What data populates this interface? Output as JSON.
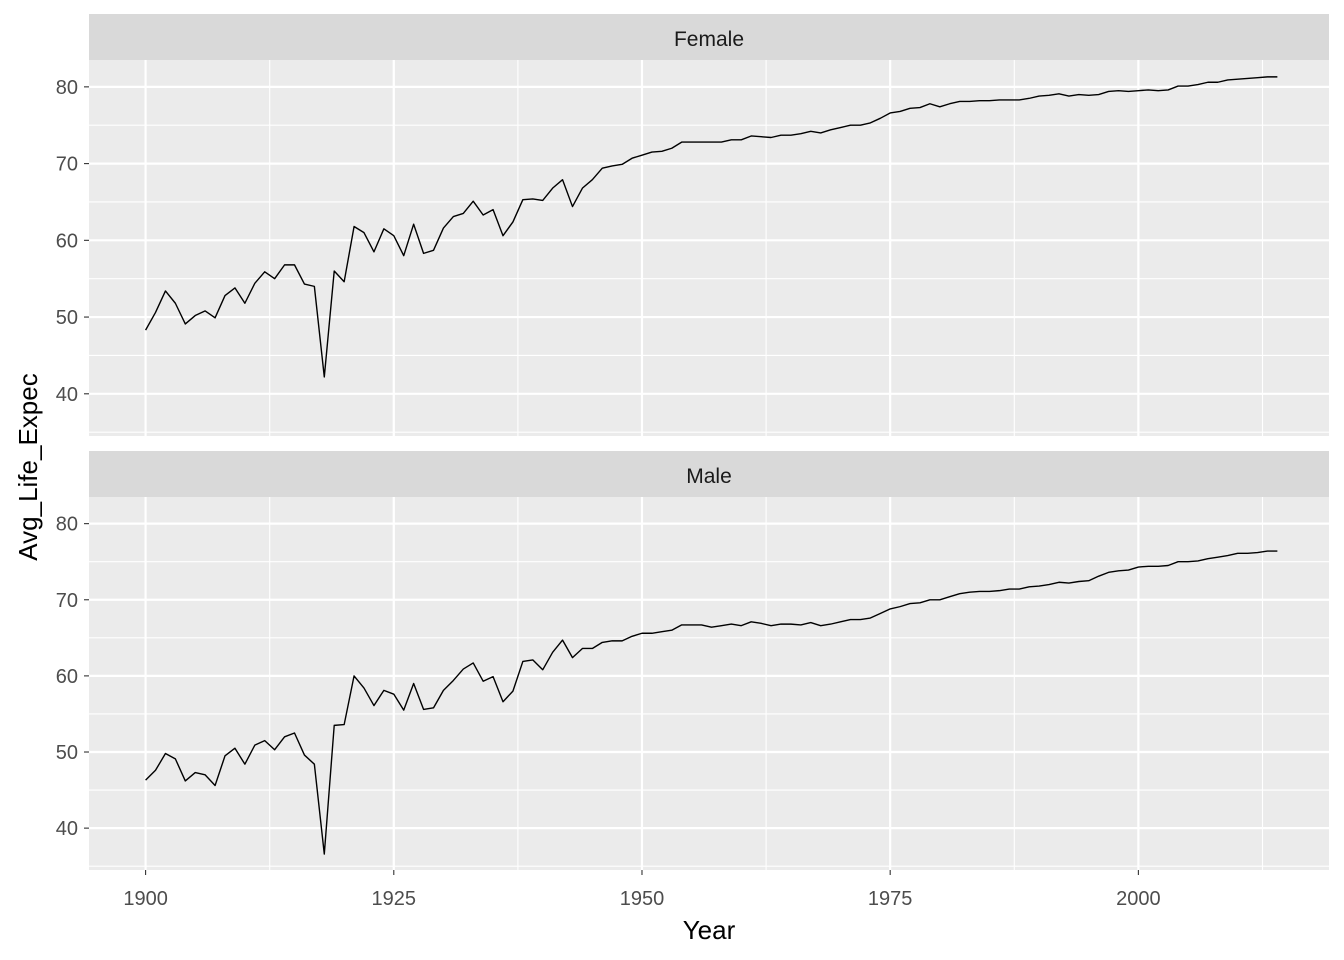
{
  "chart_data": {
    "type": "line",
    "facet_by": "sex",
    "xlabel": "Year",
    "ylabel": "Avg_Life_Expec",
    "xlim": [
      1894.3,
      2019.2
    ],
    "ylim": [
      34.5,
      83.5
    ],
    "x_ticks": [
      1900,
      1925,
      1950,
      1975,
      2000
    ],
    "y_ticks": [
      40,
      50,
      60,
      70,
      80
    ],
    "colors": {
      "panel_bg": "#ebebeb",
      "strip_bg": "#d9d9d9",
      "grid": "#ffffff",
      "line": "#000000"
    },
    "x": [
      1900,
      1901,
      1902,
      1903,
      1904,
      1905,
      1906,
      1907,
      1908,
      1909,
      1910,
      1911,
      1912,
      1913,
      1914,
      1915,
      1916,
      1917,
      1918,
      1919,
      1920,
      1921,
      1922,
      1923,
      1924,
      1925,
      1926,
      1927,
      1928,
      1929,
      1930,
      1931,
      1932,
      1933,
      1934,
      1935,
      1936,
      1937,
      1938,
      1939,
      1940,
      1941,
      1942,
      1943,
      1944,
      1945,
      1946,
      1947,
      1948,
      1949,
      1950,
      1951,
      1952,
      1953,
      1954,
      1955,
      1956,
      1957,
      1958,
      1959,
      1960,
      1961,
      1962,
      1963,
      1964,
      1965,
      1966,
      1967,
      1968,
      1969,
      1970,
      1971,
      1972,
      1973,
      1974,
      1975,
      1976,
      1977,
      1978,
      1979,
      1980,
      1981,
      1982,
      1983,
      1984,
      1985,
      1986,
      1987,
      1988,
      1989,
      1990,
      1991,
      1992,
      1993,
      1994,
      1995,
      1996,
      1997,
      1998,
      1999,
      2000,
      2001,
      2002,
      2003,
      2004,
      2005,
      2006,
      2007,
      2008,
      2009,
      2010,
      2011,
      2012,
      2013,
      2014
    ],
    "series": [
      {
        "name": "Female",
        "values": [
          48.3,
          50.6,
          53.4,
          51.8,
          49.1,
          50.2,
          50.8,
          49.9,
          52.8,
          53.8,
          51.8,
          54.4,
          55.9,
          55.0,
          56.8,
          56.8,
          54.3,
          54.0,
          42.2,
          56.0,
          54.6,
          61.8,
          61.0,
          58.5,
          61.5,
          60.6,
          58.0,
          62.1,
          58.3,
          58.7,
          61.6,
          63.1,
          63.5,
          65.1,
          63.3,
          64.0,
          60.6,
          62.4,
          65.3,
          65.4,
          65.2,
          66.8,
          67.9,
          64.4,
          66.8,
          67.9,
          69.4,
          69.7,
          69.9,
          70.7,
          71.1,
          71.5,
          71.6,
          72.0,
          72.8,
          72.8,
          72.8,
          72.8,
          72.8,
          73.1,
          73.1,
          73.6,
          73.5,
          73.4,
          73.7,
          73.7,
          73.9,
          74.2,
          74.0,
          74.4,
          74.7,
          75.0,
          75.0,
          75.3,
          75.9,
          76.6,
          76.8,
          77.2,
          77.3,
          77.8,
          77.4,
          77.8,
          78.1,
          78.1,
          78.2,
          78.2,
          78.3,
          78.3,
          78.3,
          78.5,
          78.8,
          78.9,
          79.1,
          78.8,
          79.0,
          78.9,
          79.0,
          79.4,
          79.5,
          79.4,
          79.5,
          79.6,
          79.5,
          79.6,
          80.1,
          80.1,
          80.3,
          80.6,
          80.6,
          80.9,
          81.0,
          81.1,
          81.2,
          81.3,
          81.3
        ]
      },
      {
        "name": "Male",
        "values": [
          46.3,
          47.6,
          49.8,
          49.1,
          46.2,
          47.3,
          47.0,
          45.6,
          49.5,
          50.5,
          48.4,
          50.9,
          51.5,
          50.3,
          52.0,
          52.5,
          49.6,
          48.4,
          36.6,
          53.5,
          53.6,
          60.0,
          58.4,
          56.1,
          58.1,
          57.6,
          55.5,
          59.0,
          55.6,
          55.8,
          58.1,
          59.4,
          60.9,
          61.7,
          59.3,
          59.9,
          56.6,
          58.0,
          61.9,
          62.1,
          60.8,
          63.1,
          64.7,
          62.4,
          63.6,
          63.6,
          64.4,
          64.6,
          64.6,
          65.2,
          65.6,
          65.6,
          65.8,
          66.0,
          66.7,
          66.7,
          66.7,
          66.4,
          66.6,
          66.8,
          66.6,
          67.1,
          66.9,
          66.6,
          66.8,
          66.8,
          66.7,
          67.0,
          66.6,
          66.8,
          67.1,
          67.4,
          67.4,
          67.6,
          68.2,
          68.8,
          69.1,
          69.5,
          69.6,
          70.0,
          70.0,
          70.4,
          70.8,
          71.0,
          71.1,
          71.1,
          71.2,
          71.4,
          71.4,
          71.7,
          71.8,
          72.0,
          72.3,
          72.2,
          72.4,
          72.5,
          73.1,
          73.6,
          73.8,
          73.9,
          74.3,
          74.4,
          74.4,
          74.5,
          75.0,
          75.0,
          75.1,
          75.4,
          75.6,
          75.8,
          76.1,
          76.1,
          76.2,
          76.4,
          76.4
        ]
      }
    ]
  }
}
